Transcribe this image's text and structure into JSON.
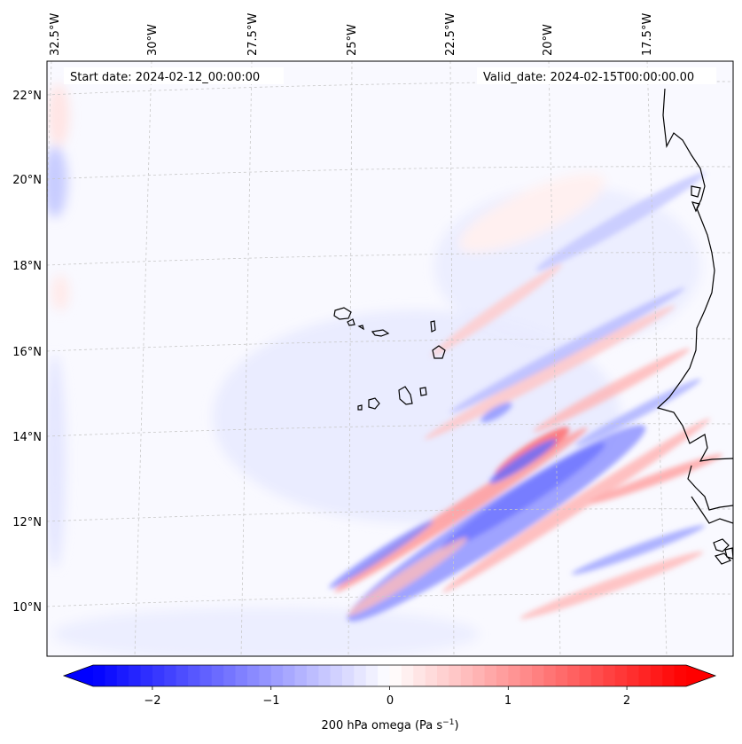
{
  "header": {
    "start_date": "Start date: 2024-02-12_00:00:00",
    "valid_date": "Valid_date: 2024-02-15T00:00:00.00"
  },
  "map": {
    "top_lon_labels": [
      "32.5°W",
      "30°W",
      "27.5°W",
      "25°W",
      "22.5°W",
      "20°W",
      "17.5°W"
    ],
    "left_lat_labels": [
      "22°N",
      "20°N",
      "18°N",
      "16°N",
      "14°N",
      "12°N",
      "10°N"
    ]
  },
  "colorbar": {
    "tick_labels": [
      "−2",
      "−1",
      "0",
      "1",
      "2"
    ],
    "tick_values": [
      -2,
      -1,
      0,
      1,
      2
    ],
    "range": [
      -2.5,
      2.5
    ],
    "label_main": "200 hPa omega (Pa s",
    "label_exp": "−1",
    "label_close": ")"
  },
  "colors": {
    "negative": "#0000ff",
    "neutral": "#ffffff",
    "positive": "#ff0000",
    "coast": "#000000"
  }
}
